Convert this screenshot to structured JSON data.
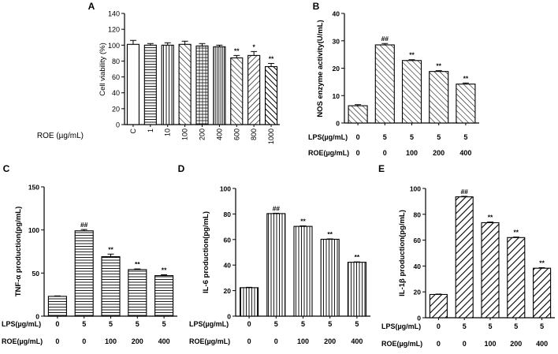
{
  "chart_data": [
    {
      "panel": "A",
      "type": "bar",
      "ylabel": "Cell viability (%)",
      "ylim": [
        0,
        140
      ],
      "yticks": [
        0,
        20,
        40,
        60,
        80,
        100,
        120,
        140
      ],
      "row_labels": [
        "ROE (µg/mL)"
      ],
      "categories": [
        "C",
        "1",
        "10",
        "100",
        "200",
        "400",
        "600",
        "800",
        "1000"
      ],
      "values": [
        101,
        100,
        100,
        101,
        99,
        98,
        84,
        87,
        73
      ],
      "errors": [
        5,
        2,
        3,
        4,
        3,
        2,
        3,
        5,
        4
      ],
      "annotations": [
        "",
        "",
        "",
        "",
        "",
        "",
        "**",
        "*",
        "**"
      ],
      "patterns": [
        "none",
        "hlines",
        "vlines",
        "back45",
        "grid",
        "dense-vlines",
        "back45",
        "fwd45",
        "back45-bold"
      ]
    },
    {
      "panel": "B",
      "type": "bar",
      "ylabel": "NOS  enzyme activity(U/mL)",
      "ylim": [
        0,
        40
      ],
      "yticks": [
        0,
        10,
        20,
        30,
        40
      ],
      "row_labels": [
        "LPS(µg/mL)",
        "ROE(µg/mL)"
      ],
      "rows": [
        [
          "0",
          "5",
          "5",
          "5",
          "5"
        ],
        [
          "0",
          "0",
          "100",
          "200",
          "400"
        ]
      ],
      "values": [
        6.3,
        28.5,
        22.8,
        18.8,
        14.2
      ],
      "errors": [
        0.4,
        0.5,
        0.3,
        0.3,
        0.4
      ],
      "annotations": [
        "",
        "##",
        "**",
        "**",
        "**"
      ]
    },
    {
      "panel": "C",
      "type": "bar",
      "ylabel": "TNF-α  production(pg/mL)",
      "ylim": [
        0,
        150
      ],
      "yticks": [
        0,
        50,
        100,
        150
      ],
      "row_labels": [
        "LPS(µg/mL)",
        "ROE(µg/mL)"
      ],
      "rows": [
        [
          "0",
          "5",
          "5",
          "5",
          "5"
        ],
        [
          "0",
          "0",
          "100",
          "200",
          "400"
        ]
      ],
      "values": [
        23,
        99,
        69,
        54,
        47
      ],
      "errors": [
        0.5,
        1.5,
        3,
        0.8,
        1
      ],
      "annotations": [
        "",
        "##",
        "**",
        "**",
        "**"
      ]
    },
    {
      "panel": "D",
      "type": "bar",
      "ylabel": "IL-6  production(pg/mL)",
      "ylim": [
        0,
        100
      ],
      "yticks": [
        0,
        20,
        40,
        60,
        80,
        100
      ],
      "row_labels": [
        "LPS(µg/mL)",
        "ROE(µg/mL)"
      ],
      "rows": [
        [
          "0",
          "5",
          "5",
          "5",
          "5"
        ],
        [
          "0",
          "0",
          "100",
          "200",
          "400"
        ]
      ],
      "values": [
        22.3,
        80.3,
        70.3,
        60.2,
        42.2
      ],
      "errors": [
        0.3,
        0.3,
        0.4,
        0.3,
        0.3
      ],
      "annotations": [
        "",
        "##",
        "**",
        "**",
        "**"
      ]
    },
    {
      "panel": "E",
      "type": "bar",
      "ylabel": "IL-1β  production(pg/mL)",
      "ylim": [
        0,
        100
      ],
      "yticks": [
        0,
        20,
        40,
        60,
        80,
        100
      ],
      "row_labels": [
        "LPS(µg/mL)",
        "ROE(µg/mL)"
      ],
      "rows": [
        [
          "0",
          "5",
          "5",
          "5",
          "5"
        ],
        [
          "0",
          "0",
          "100",
          "200",
          "400"
        ]
      ],
      "values": [
        18,
        93.5,
        73.5,
        62,
        38.3
      ],
      "errors": [
        0.3,
        0.4,
        0.5,
        0.4,
        0.4
      ],
      "annotations": [
        "",
        "##",
        "**",
        "**",
        "**"
      ]
    }
  ]
}
